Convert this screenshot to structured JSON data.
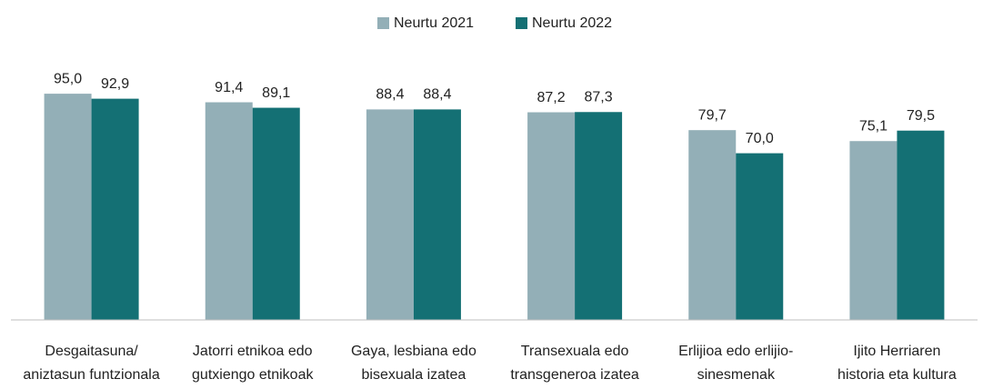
{
  "chart_data": {
    "type": "bar",
    "categories": [
      [
        "Desgaitasuna/",
        "aniztasun funtzionala"
      ],
      [
        "Jatorri etnikoa edo",
        "gutxiengo etnikoak"
      ],
      [
        "Gaya, lesbiana edo",
        "bisexuala izatea"
      ],
      [
        "Transexuala edo",
        "transgeneroa izatea"
      ],
      [
        "Erlijioa edo erlijio-",
        "sinesmenak"
      ],
      [
        "Ijito Herriaren",
        "historia eta kultura"
      ]
    ],
    "series": [
      {
        "name": "Neurtu 2021",
        "color": "#93afb7",
        "values": [
          95.0,
          91.4,
          88.4,
          87.2,
          79.7,
          75.1
        ],
        "value_labels": [
          "95,0",
          "91,4",
          "88,4",
          "87,2",
          "79,7",
          "75,1"
        ]
      },
      {
        "name": "Neurtu 2022",
        "color": "#147074",
        "values": [
          92.9,
          89.1,
          88.4,
          87.3,
          70.0,
          79.5
        ],
        "value_labels": [
          "92,9",
          "89,1",
          "88,4",
          "87,3",
          "70,0",
          "79,5"
        ]
      }
    ],
    "ylim": [
      0,
      100
    ],
    "legend": "top"
  }
}
